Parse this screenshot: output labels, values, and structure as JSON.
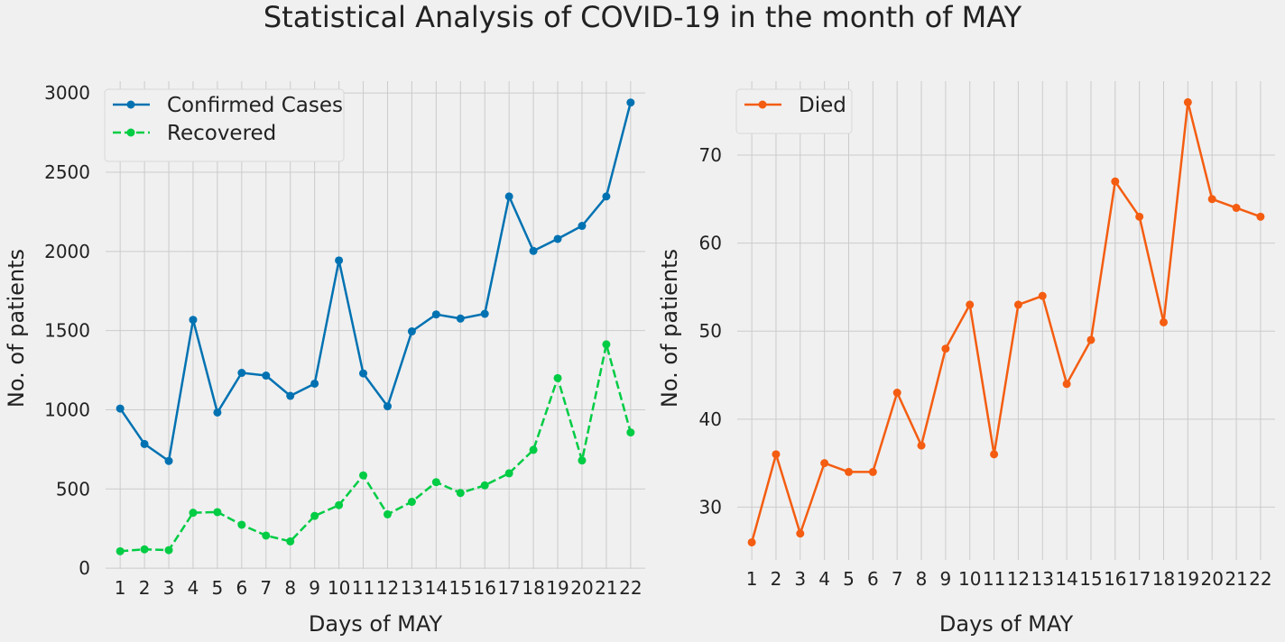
{
  "figure": {
    "title": "Statistical Analysis of COVID-19 in the month of MAY"
  },
  "chart_data": [
    {
      "type": "line",
      "x": [
        1,
        2,
        3,
        4,
        5,
        6,
        7,
        8,
        9,
        10,
        11,
        12,
        13,
        14,
        15,
        16,
        17,
        18,
        19,
        20,
        21,
        22
      ],
      "xlabel": "Days of MAY",
      "ylabel": "No. of patients",
      "ylim": [
        -5,
        3075
      ],
      "yticks": [
        0,
        500,
        1000,
        1500,
        2000,
        2500,
        3000
      ],
      "grid": true,
      "legend": "upper-left",
      "series": [
        {
          "name": "Confirmed Cases",
          "color": "#0072b2",
          "style": "solid",
          "values": [
            1008,
            784,
            677,
            1568,
            983,
            1233,
            1216,
            1088,
            1165,
            1943,
            1230,
            1022,
            1495,
            1602,
            1576,
            1606,
            2347,
            2003,
            2079,
            2161,
            2347,
            2940
          ]
        },
        {
          "name": "Recovered",
          "color": "#00cc44",
          "style": "dashed",
          "values": [
            107,
            119,
            114,
            350,
            354,
            274,
            206,
            169,
            330,
            398,
            586,
            340,
            419,
            543,
            475,
            523,
            599,
            747,
            1200,
            680,
            1413,
            857
          ]
        }
      ]
    },
    {
      "type": "line",
      "x": [
        1,
        2,
        3,
        4,
        5,
        6,
        7,
        8,
        9,
        10,
        11,
        12,
        13,
        14,
        15,
        16,
        17,
        18,
        19,
        20,
        21,
        22
      ],
      "xlabel": "Days of MAY",
      "ylabel": "No. of patients",
      "ylim": [
        24,
        78.4
      ],
      "yticks": [
        30,
        40,
        50,
        60,
        70
      ],
      "grid": true,
      "legend": "upper-left",
      "series": [
        {
          "name": "Died",
          "color": "#f45d11",
          "style": "solid",
          "values": [
            26,
            36,
            27,
            35,
            34,
            34,
            43,
            37,
            48,
            53,
            36,
            53,
            54,
            44,
            49,
            67,
            63,
            51,
            76,
            65,
            64,
            63
          ]
        }
      ]
    }
  ]
}
